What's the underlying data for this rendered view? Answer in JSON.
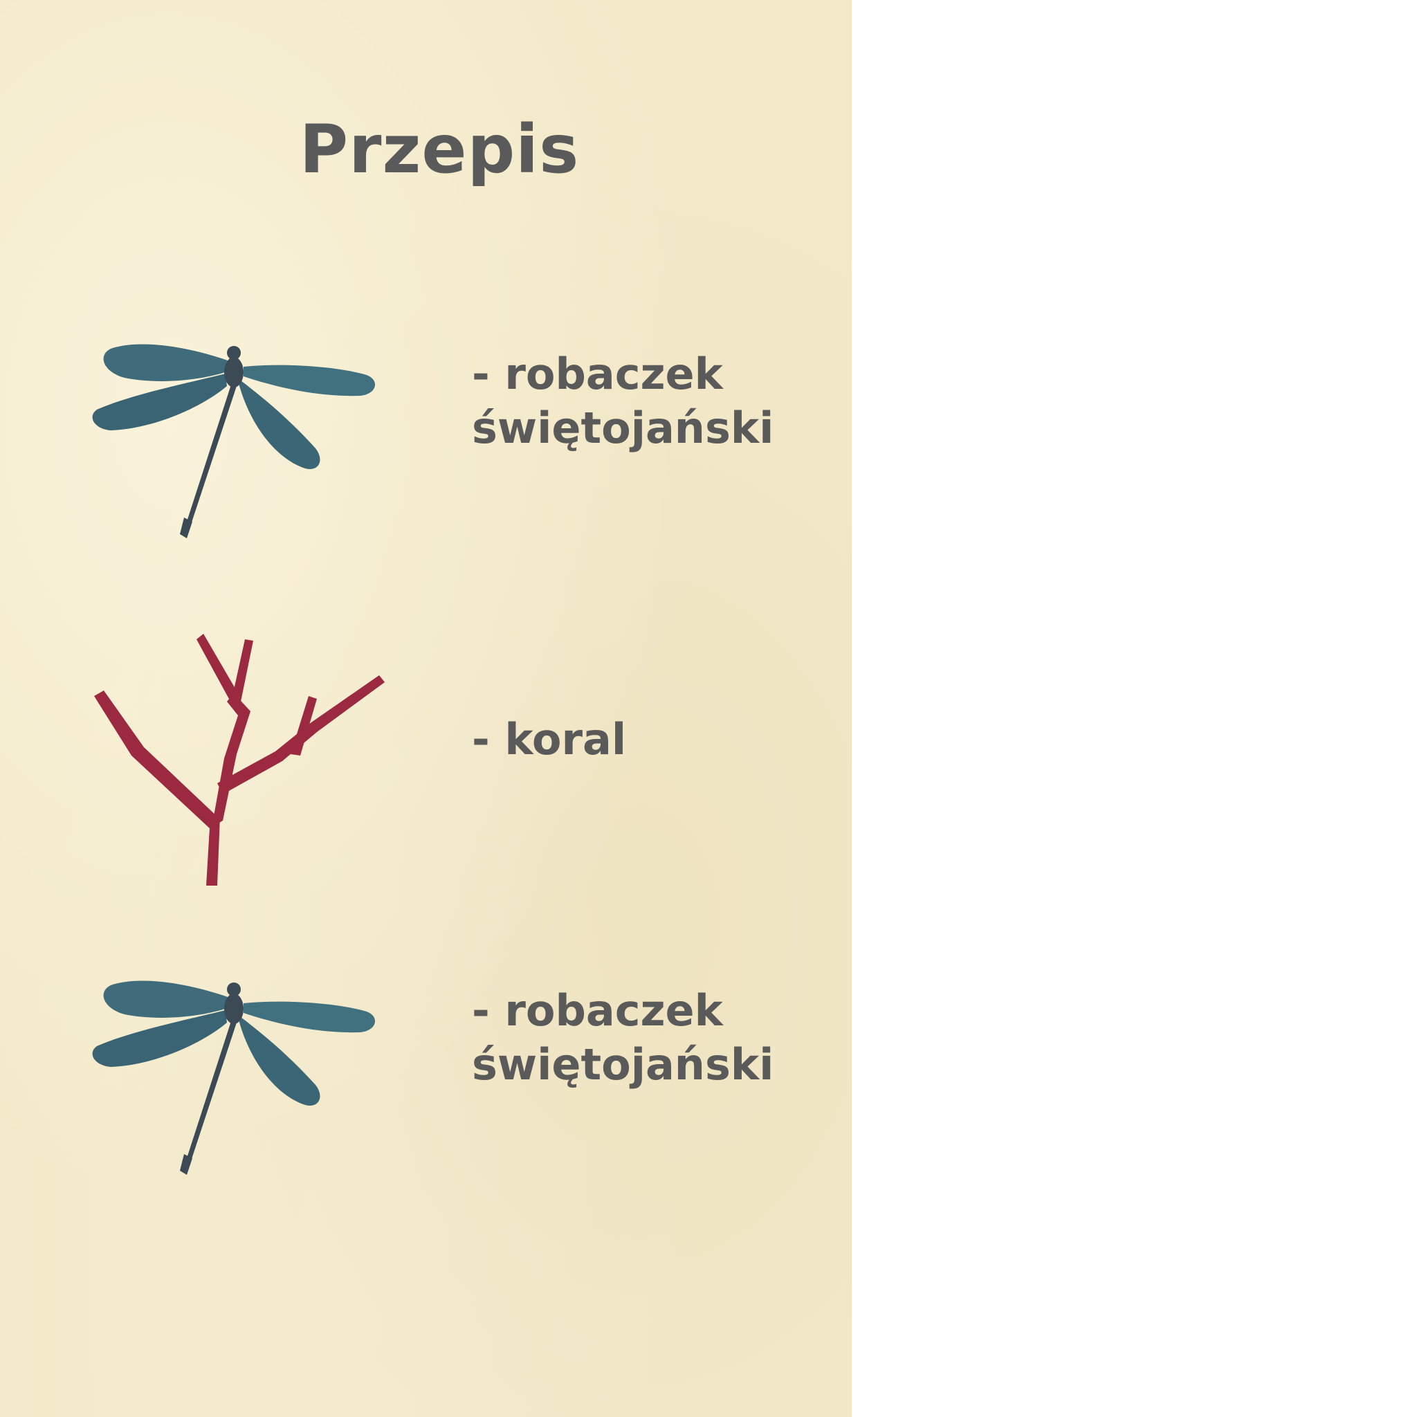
{
  "recipe": {
    "title": "Przepis",
    "ingredients": [
      {
        "label": "- robaczek\nświętojański",
        "icon": "dragonfly-icon"
      },
      {
        "label": "- koral",
        "icon": "coral-icon"
      },
      {
        "label": "- robaczek\nświętojański",
        "icon": "dragonfly-icon"
      }
    ]
  },
  "colors": {
    "card_background": "#f3e9c9",
    "text": "#5a5a5a",
    "dragonfly_wing": "#3f6b7a",
    "dragonfly_body": "#3c4a55",
    "coral": "#9b2a40"
  }
}
